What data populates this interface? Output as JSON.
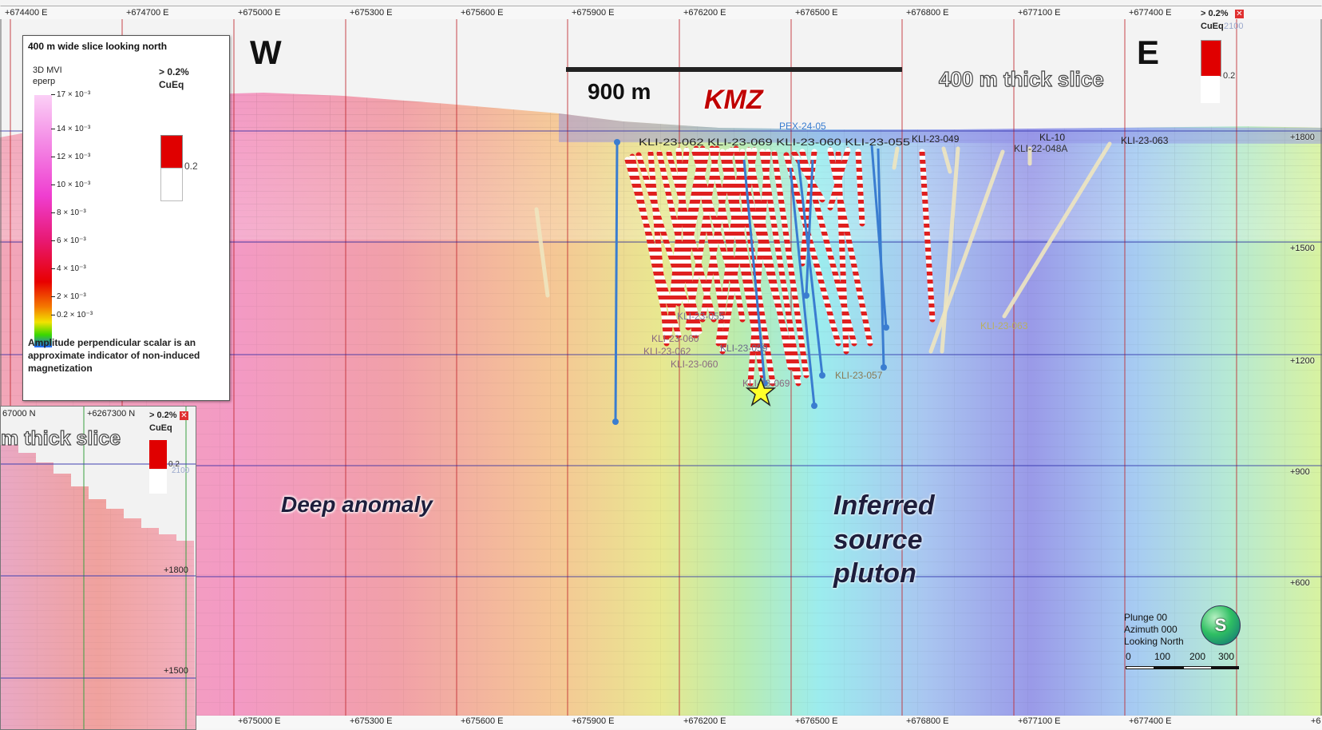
{
  "coords": {
    "easting_top": [
      "+674400 E",
      "+674700 E",
      "+675000 E",
      "+675300 E",
      "+675600 E",
      "+675900 E",
      "+676200 E",
      "+676500 E",
      "+676800 E",
      "+677100 E",
      "+677400 E"
    ],
    "easting_bottom": [
      "+675000 E",
      "+675300 E",
      "+675600 E",
      "+675900 E",
      "+676200 E",
      "+676500 E",
      "+676800 E",
      "+677100 E",
      "+677400 E",
      "+6"
    ],
    "elevation": [
      "+1800",
      "+1500",
      "+1200",
      "+900",
      "+600"
    ]
  },
  "labels": {
    "west": "W",
    "east": "E",
    "scale": "900 m",
    "kmz": "KMZ",
    "slice": "400 m thick slice",
    "deep_anomaly": "Deep anomaly",
    "pluton": [
      "Inferred",
      "source",
      "pluton"
    ]
  },
  "legend": {
    "title": "400 m wide slice looking north",
    "mvi": [
      "3D MVI",
      "eperp"
    ],
    "cueq": [
      "> 0.2%",
      "CuEq"
    ],
    "threshold": "0.2",
    "ticks": [
      "17 × 10⁻³",
      "14 × 10⁻³",
      "12 × 10⁻³",
      "10 × 10⁻³",
      "8 × 10⁻³",
      "6 × 10⁻³",
      "4 × 10⁻³",
      "2 × 10⁻³",
      "0.2 × 10⁻³"
    ],
    "note": "Amplitude perpendicular scalar is an approximate indicator of non-induced magnetization"
  },
  "top_right_legend": {
    "line1": "> 0.2%",
    "line2": "CuEq",
    "faint": "2100",
    "value": "0.2"
  },
  "holes": [
    "KLI-23-063",
    "KLI-22-048A",
    "KL-10",
    "KLI-23-049",
    "PEX-24-05",
    "KLI-23-063",
    "KLI-23-057",
    "KLI-23-059",
    "KLI-23-060",
    "KLI-23-062",
    "KLI-23-060",
    "KLI-23-055",
    "KLI-23-069"
  ],
  "inset": {
    "north_labels": [
      "67000 N",
      "+6267300 N"
    ],
    "slice": "m thick slice",
    "cueq": [
      "> 0.2%",
      "CuEq"
    ],
    "threshold": "0.2",
    "faint": "2100",
    "elev": [
      "+1800",
      "+1500"
    ]
  },
  "view": {
    "lines": [
      "Plunge 00",
      "Azimuth 000",
      "Looking North"
    ],
    "scale_ticks": [
      "0",
      "100",
      "200",
      "300"
    ],
    "compass": "S"
  },
  "colors": {
    "kmz": "#c00000",
    "grid_red": "#c0282e",
    "grid_blue": "#1e1ea0",
    "drill_blue": "#3a7dd0"
  }
}
